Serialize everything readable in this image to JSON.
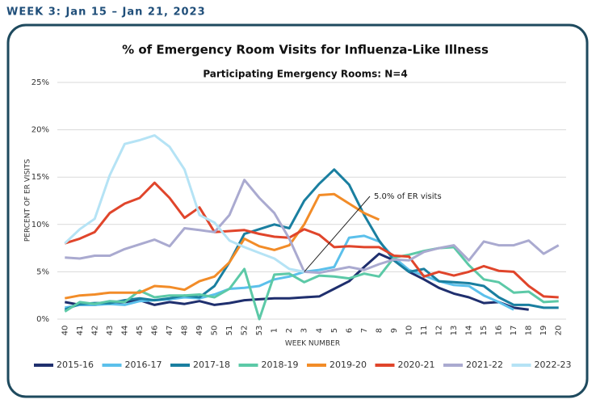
{
  "header": "WEEK 3: Jan 15 – Jan 21, 2023",
  "chart_data": {
    "type": "line",
    "title": "% of Emergency Room Visits for Influenza-Like Illness",
    "subtitle": "Participating Emergency Rooms: N=4",
    "x_label": "WEEK NUMBER",
    "y_label": "PERCENT OF ER VISITS",
    "annotation": "5.0% of ER visits",
    "categories": [
      "40",
      "41",
      "42",
      "43",
      "44",
      "45",
      "46",
      "47",
      "48",
      "49",
      "50",
      "51",
      "52",
      "53",
      "1",
      "2",
      "3",
      "4",
      "5",
      "6",
      "7",
      "8",
      "9",
      "10",
      "11",
      "12",
      "13",
      "14",
      "15",
      "16",
      "17",
      "18",
      "19",
      "20"
    ],
    "ylim": [
      0,
      25
    ],
    "yticks": [
      {
        "value": 0,
        "label": "0%"
      },
      {
        "value": 5,
        "label": "5%"
      },
      {
        "value": 10,
        "label": "10%"
      },
      {
        "value": 15,
        "label": "15%"
      },
      {
        "value": 20,
        "label": "20%"
      },
      {
        "value": 25,
        "label": "25%"
      }
    ],
    "grid": true,
    "legend": "bottom",
    "series": [
      {
        "name": "2015-16",
        "color": "#1f2f6e",
        "values": [
          1.8,
          1.5,
          1.5,
          1.7,
          1.8,
          2.0,
          1.5,
          1.8,
          1.6,
          1.9,
          1.5,
          1.7,
          2.0,
          2.1,
          2.2,
          2.2,
          2.3,
          2.4,
          3.2,
          4.0,
          5.5,
          6.9,
          6.2,
          5.0,
          4.2,
          3.3,
          2.7,
          2.3,
          1.7,
          1.8,
          1.2,
          1.0,
          null,
          null
        ]
      },
      {
        "name": "2016-17",
        "color": "#5bc0eb",
        "values": [
          1.2,
          1.5,
          1.5,
          1.6,
          1.5,
          1.9,
          2.0,
          2.1,
          2.3,
          2.2,
          2.6,
          3.2,
          3.3,
          3.5,
          4.2,
          4.5,
          5.0,
          5.2,
          5.5,
          8.6,
          8.8,
          8.2,
          6.5,
          5.2,
          4.6,
          4.0,
          3.6,
          3.5,
          2.5,
          1.8,
          1.0,
          null,
          null,
          null
        ]
      },
      {
        "name": "2017-18",
        "color": "#1a7fa0",
        "values": [
          1.0,
          1.6,
          1.7,
          1.7,
          2.0,
          2.2,
          2.0,
          2.2,
          2.5,
          2.3,
          3.5,
          6.0,
          9.0,
          9.5,
          10.0,
          9.6,
          12.5,
          14.3,
          15.8,
          14.2,
          11.0,
          8.3,
          6.2,
          5.0,
          5.3,
          4.0,
          3.9,
          3.8,
          3.5,
          2.3,
          1.5,
          1.5,
          1.2,
          1.2
        ]
      },
      {
        "name": "2018-19",
        "color": "#5cc9a7",
        "values": [
          0.8,
          1.8,
          1.6,
          1.9,
          1.8,
          3.0,
          2.3,
          2.5,
          2.5,
          2.6,
          2.3,
          3.2,
          5.3,
          0,
          4.7,
          4.8,
          3.9,
          4.6,
          4.5,
          4.3,
          4.8,
          4.5,
          6.5,
          6.8,
          7.2,
          7.5,
          7.6,
          5.7,
          4.2,
          3.9,
          2.8,
          2.9,
          1.8,
          1.9
        ]
      },
      {
        "name": "2019-20",
        "color": "#f28c28",
        "values": [
          2.2,
          2.5,
          2.6,
          2.8,
          2.8,
          2.8,
          3.5,
          3.4,
          3.1,
          4.0,
          4.5,
          6.0,
          8.5,
          7.7,
          7.3,
          7.8,
          10.0,
          13.1,
          13.2,
          12.2,
          11.2,
          10.5,
          null,
          null,
          null,
          null,
          null,
          null,
          null,
          null,
          null,
          null,
          null,
          null
        ]
      },
      {
        "name": "2020-21",
        "color": "#e0452b",
        "values": [
          8.0,
          8.5,
          9.2,
          11.2,
          12.2,
          12.8,
          14.4,
          12.8,
          10.7,
          11.8,
          9.2,
          9.3,
          9.4,
          9.0,
          8.7,
          8.6,
          9.5,
          8.9,
          7.6,
          7.7,
          7.6,
          7.6,
          6.7,
          6.6,
          4.5,
          5.0,
          4.6,
          5.0,
          5.6,
          5.1,
          5.0,
          3.5,
          2.4,
          2.3
        ]
      },
      {
        "name": "2021-22",
        "color": "#aaaad0",
        "values": [
          6.5,
          6.4,
          6.7,
          6.7,
          7.4,
          7.9,
          8.4,
          7.7,
          9.6,
          9.4,
          9.2,
          11.0,
          14.7,
          12.8,
          11.2,
          8.5,
          5.0,
          4.9,
          5.2,
          5.5,
          5.2,
          5.8,
          6.3,
          6.2,
          7.1,
          7.5,
          7.8,
          6.2,
          8.2,
          7.8,
          7.8,
          8.3,
          6.9,
          7.8
        ]
      },
      {
        "name": "2022-23",
        "color": "#b5e3f5",
        "values": [
          8.0,
          9.5,
          10.6,
          15.2,
          18.5,
          18.9,
          19.4,
          18.2,
          15.8,
          11.0,
          10.2,
          8.3,
          7.6,
          7.0,
          6.4,
          5.3,
          5.0,
          null,
          null,
          null,
          null,
          null,
          null,
          null,
          null,
          null,
          null,
          null,
          null,
          null,
          null,
          null,
          null,
          null
        ]
      }
    ]
  }
}
